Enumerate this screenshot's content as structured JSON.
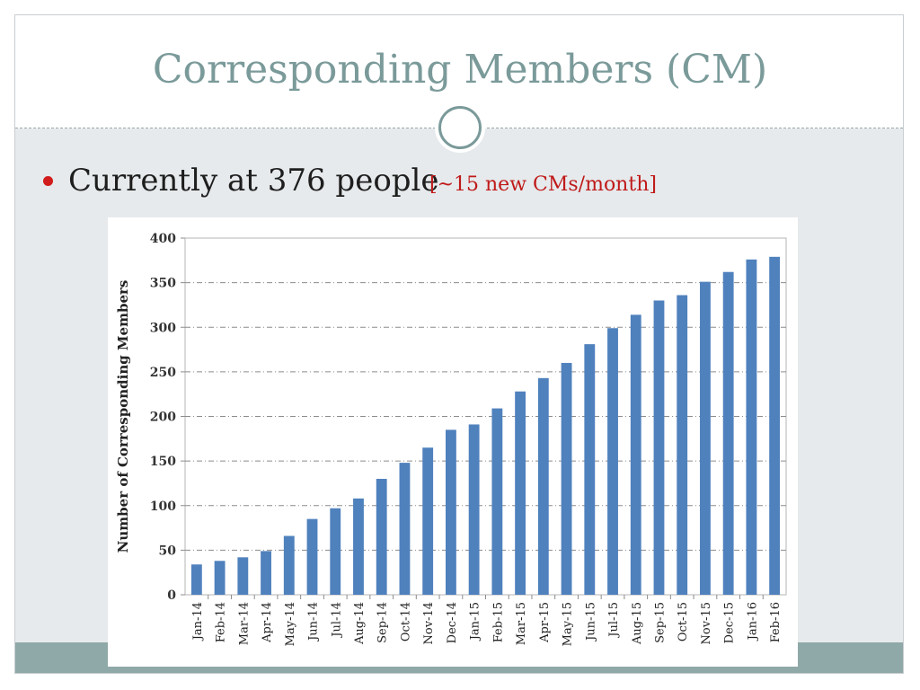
{
  "slide": {
    "title": "Corresponding Members (CM)",
    "bullet_text": "Currently at 376 people",
    "bullet_note": "[~15 new CMs/month]"
  },
  "colors": {
    "title": "#7b9a9a",
    "bullet": "#d11c1c",
    "note": "#c01a1a",
    "bar": "#4f81bd"
  },
  "chart_data": {
    "type": "bar",
    "title": "",
    "xlabel": "",
    "ylabel": "Number of Corresponding Members",
    "ylim": [
      0,
      400
    ],
    "yticks": [
      0,
      50,
      100,
      150,
      200,
      250,
      300,
      350,
      400
    ],
    "grid": true,
    "categories": [
      "Jan-14",
      "Feb-14",
      "Mar-14",
      "Apr-14",
      "May-14",
      "Jun-14",
      "Jul-14",
      "Aug-14",
      "Sep-14",
      "Oct-14",
      "Nov-14",
      "Dec-14",
      "Jan-15",
      "Feb-15",
      "Mar-15",
      "Apr-15",
      "May-15",
      "Jun-15",
      "Jul-15",
      "Aug-15",
      "Sep-15",
      "Oct-15",
      "Nov-15",
      "Dec-15",
      "Jan-16",
      "Feb-16"
    ],
    "values": [
      34,
      38,
      42,
      49,
      66,
      85,
      97,
      108,
      130,
      148,
      165,
      185,
      191,
      209,
      228,
      243,
      260,
      281,
      299,
      314,
      330,
      336,
      351,
      362,
      376,
      379
    ]
  }
}
